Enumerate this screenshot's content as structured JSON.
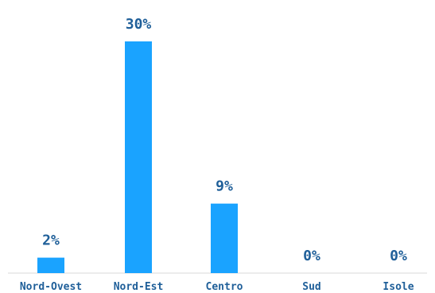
{
  "chart_data": {
    "type": "bar",
    "categories": [
      "Nord-Ovest",
      "Nord-Est",
      "Centro",
      "Sud",
      "Isole"
    ],
    "values": [
      2,
      30,
      9,
      0,
      0
    ],
    "data_labels": [
      "2%",
      "30%",
      "9%",
      "0%",
      "0%"
    ],
    "title": "",
    "xlabel": "",
    "ylabel": "",
    "ylim": [
      0,
      30
    ],
    "grid": false,
    "legend": "none",
    "colors": {
      "bar": "#1aa3ff",
      "label": "#1f5f99",
      "baseline": "#d9d9d9"
    }
  }
}
